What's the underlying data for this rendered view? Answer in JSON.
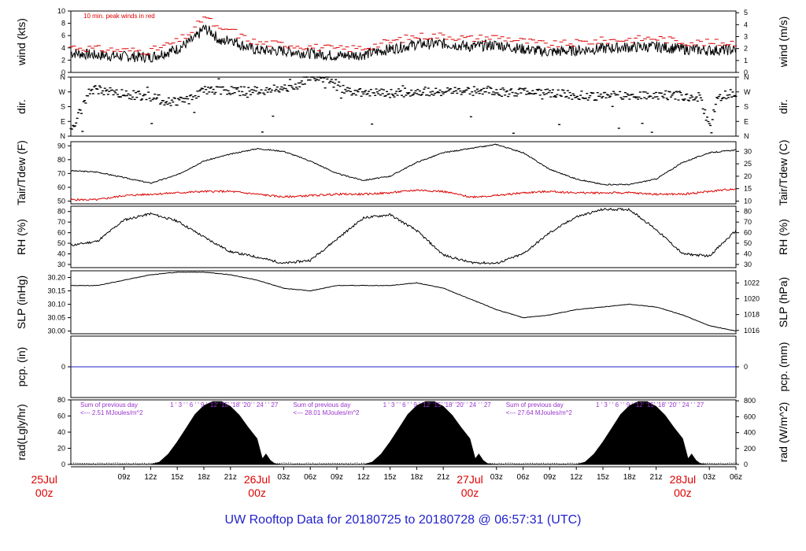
{
  "title": "UW Rooftop Data for 20180725  to  20180728 @ 06:57:31  (UTC)",
  "colors": {
    "title": "#2222cc",
    "peak": "#dd0000",
    "dew": "#dd0000",
    "precip": "#2222cc",
    "note": "#9933cc",
    "date": "#dd0000",
    "axis": "#000000"
  },
  "x_axis": {
    "time_range_hours": [
      3,
      78
    ],
    "hour_ticks": [
      {
        "h": 9,
        "label": "09z"
      },
      {
        "h": 12,
        "label": "12z"
      },
      {
        "h": 15,
        "label": "15z"
      },
      {
        "h": 18,
        "label": "18z"
      },
      {
        "h": 21,
        "label": "21z"
      },
      {
        "h": 27,
        "label": "03z"
      },
      {
        "h": 30,
        "label": "06z"
      },
      {
        "h": 33,
        "label": "09z"
      },
      {
        "h": 36,
        "label": "12z"
      },
      {
        "h": 39,
        "label": "15z"
      },
      {
        "h": 42,
        "label": "18z"
      },
      {
        "h": 45,
        "label": "21z"
      },
      {
        "h": 51,
        "label": "03z"
      },
      {
        "h": 54,
        "label": "06z"
      },
      {
        "h": 57,
        "label": "09z"
      },
      {
        "h": 60,
        "label": "12z"
      },
      {
        "h": 63,
        "label": "15z"
      },
      {
        "h": 66,
        "label": "18z"
      },
      {
        "h": 69,
        "label": "21z"
      },
      {
        "h": 75,
        "label": "03z"
      },
      {
        "h": 78,
        "label": "06z"
      }
    ],
    "date_labels": [
      {
        "h": 0,
        "line1": "25Jul",
        "line2": "00z"
      },
      {
        "h": 24,
        "line1": "26Jul",
        "line2": "00z"
      },
      {
        "h": 48,
        "line1": "27Jul",
        "line2": "00z"
      },
      {
        "h": 72,
        "line1": "28Jul",
        "line2": "00z"
      }
    ]
  },
  "panels": {
    "wind": {
      "ylabel_left": "wind (kts)",
      "ylabel_right": "wind (m/s)",
      "left_ticks": [
        "0",
        "2",
        "4",
        "6",
        "8",
        "10"
      ],
      "right_ticks": [
        "0",
        "1",
        "2",
        "3",
        "4",
        "5"
      ],
      "note": "10 min. peak winds in red"
    },
    "dir": {
      "ylabel_left": "dir.",
      "ylabel_right": "dir.",
      "ticks": [
        "N",
        "E",
        "S",
        "W",
        "N"
      ]
    },
    "temp": {
      "ylabel_left": "Tair/Tdew (F)",
      "ylabel_right": "Tair/Tdew (C)",
      "left_ticks": [
        "50",
        "60",
        "70",
        "80",
        "90"
      ],
      "right_ticks": [
        "10",
        "15",
        "20",
        "25",
        "30"
      ]
    },
    "rh": {
      "ylabel_left": "RH (%)",
      "ylabel_right": "RH (%)",
      "ticks": [
        "30",
        "40",
        "50",
        "60",
        "70",
        "80"
      ]
    },
    "slp": {
      "ylabel_left": "SLP (inHg)",
      "ylabel_right": "SLP (hPa)",
      "left_ticks": [
        "30.00",
        "30.05",
        "30.10",
        "30.15",
        "30.20"
      ],
      "right_ticks": [
        "1016",
        "1018",
        "1020",
        "1022"
      ]
    },
    "pcp": {
      "ylabel_left": "pcp. (in)",
      "ylabel_right": "pcp. (mm)",
      "left_ticks": [
        "0"
      ],
      "right_ticks": [
        "0"
      ]
    },
    "rad": {
      "ylabel_left": "rad(Lgly/hr)",
      "ylabel_right": "rad (W/m^2)",
      "left_ticks": [
        "0",
        "20",
        "40",
        "60",
        "80"
      ],
      "right_ticks": [
        "0",
        "200",
        "400",
        "600",
        "800"
      ],
      "day_marks": "1 ' 3 ' ' 6 ' ' 9 ' '12' '15' '18' '20' ' 24 ' ' 27",
      "sums": [
        {
          "h": 0,
          "line1": "Sum of previous day",
          "line2": "<--- 2.51 MJoules/m^2"
        },
        {
          "h": 24,
          "line1": "Sum of previous day",
          "line2": "<--- 28.01 MJoules/m^2"
        },
        {
          "h": 48,
          "line1": "Sum of previous day",
          "line2": "<--- 27.64 MJoules/m^2"
        }
      ]
    }
  },
  "chart_data": [
    {
      "type": "line",
      "title": "",
      "xlabel": "",
      "ylabel": "wind (kts)",
      "ylim": [
        0,
        10
      ],
      "x": [
        3,
        6,
        9,
        12,
        15,
        17,
        18,
        19,
        20,
        21,
        22,
        24,
        27,
        30,
        33,
        36,
        39,
        42,
        45,
        48,
        51,
        54,
        57,
        60,
        63,
        66,
        69,
        72,
        75,
        78
      ],
      "series": [
        {
          "name": "",
          "values": [
            3.2,
            2.8,
            2.6,
            2.5,
            3.8,
            5.5,
            7.2,
            6.4,
            4.8,
            5.6,
            4.6,
            3.6,
            3.5,
            3.1,
            2.7,
            2.9,
            3.8,
            4.6,
            4.7,
            4.2,
            4.5,
            3.8,
            3.3,
            3.6,
            3.9,
            4.1,
            4.2,
            3.8,
            3.6,
            3.7
          ]
        },
        {
          "name": "10 min. peak winds",
          "values": [
            4.2,
            3.8,
            3.6,
            3.5,
            5.0,
            7.0,
            9.2,
            8.0,
            6.5,
            7.2,
            6.0,
            4.8,
            4.6,
            4.2,
            3.8,
            4.0,
            5.0,
            5.9,
            6.0,
            5.5,
            5.8,
            5.1,
            4.5,
            4.8,
            5.2,
            5.4,
            5.6,
            5.0,
            4.8,
            4.9
          ]
        }
      ]
    },
    {
      "type": "scatter",
      "title": "",
      "ylabel": "dir.",
      "ylim": [
        0,
        360
      ],
      "x": [
        3,
        4,
        5,
        6,
        7,
        8,
        10,
        12,
        14,
        15,
        16,
        18,
        20,
        22,
        24,
        26,
        28,
        30,
        32,
        34,
        36,
        38,
        40,
        42,
        44,
        46,
        48,
        50,
        52,
        54,
        56,
        58,
        60,
        62,
        64,
        66,
        68,
        70,
        72,
        74,
        75,
        76,
        78
      ],
      "series": [
        {
          "name": "",
          "values": [
            20,
            140,
            270,
            285,
            270,
            265,
            250,
            240,
            210,
            215,
            225,
            275,
            280,
            275,
            275,
            285,
            290,
            360,
            350,
            275,
            270,
            260,
            265,
            270,
            275,
            270,
            275,
            280,
            265,
            270,
            275,
            260,
            250,
            245,
            250,
            245,
            255,
            250,
            245,
            240,
            50,
            240,
            270
          ]
        }
      ]
    },
    {
      "type": "line",
      "title": "",
      "ylabel": "Tair/Tdew (F)",
      "ylim": [
        48,
        93
      ],
      "x": [
        3,
        6,
        9,
        12,
        15,
        18,
        21,
        24,
        27,
        30,
        33,
        36,
        39,
        42,
        45,
        48,
        51,
        54,
        57,
        60,
        63,
        66,
        69,
        72,
        75,
        78
      ],
      "series": [
        {
          "name": "Tair",
          "values": [
            72,
            71,
            67,
            63,
            69,
            79,
            84,
            88,
            86,
            79,
            70,
            65,
            68,
            78,
            85,
            88,
            91,
            85,
            73,
            66,
            62,
            62,
            66,
            78,
            85,
            87
          ]
        },
        {
          "name": "Tdew",
          "values": [
            51,
            51,
            54,
            55,
            56,
            57,
            57,
            55,
            53,
            54,
            55,
            55,
            56,
            58,
            57,
            53,
            54,
            56,
            57,
            56,
            56,
            56,
            55,
            55,
            57,
            59
          ]
        }
      ]
    },
    {
      "type": "line",
      "title": "",
      "ylabel": "RH (%)",
      "ylim": [
        27,
        85
      ],
      "x": [
        3,
        6,
        9,
        12,
        15,
        18,
        21,
        24,
        27,
        30,
        33,
        36,
        39,
        42,
        45,
        48,
        51,
        54,
        57,
        60,
        63,
        66,
        69,
        72,
        75,
        78
      ],
      "series": [
        {
          "name": "",
          "values": [
            48,
            52,
            72,
            78,
            71,
            56,
            42,
            37,
            31,
            34,
            54,
            74,
            77,
            62,
            39,
            32,
            31,
            40,
            60,
            75,
            82,
            82,
            63,
            40,
            38,
            62
          ]
        }
      ]
    },
    {
      "type": "line",
      "title": "",
      "ylabel": "SLP (inHg)",
      "ylim": [
        29.99,
        30.225
      ],
      "x": [
        3,
        6,
        9,
        12,
        15,
        18,
        21,
        24,
        27,
        30,
        33,
        36,
        39,
        42,
        45,
        48,
        51,
        54,
        57,
        60,
        63,
        66,
        69,
        72,
        75,
        78
      ],
      "series": [
        {
          "name": "",
          "values": [
            30.17,
            30.17,
            30.19,
            30.21,
            30.22,
            30.22,
            30.21,
            30.19,
            30.16,
            30.15,
            30.17,
            30.17,
            30.17,
            30.18,
            30.16,
            30.12,
            30.08,
            30.05,
            30.06,
            30.08,
            30.09,
            30.1,
            30.09,
            30.06,
            30.02,
            30.0
          ]
        }
      ]
    },
    {
      "type": "line",
      "title": "",
      "ylabel": "pcp. (in)",
      "x": [
        3,
        78
      ],
      "series": [
        {
          "name": "",
          "values": [
            0,
            0
          ]
        }
      ]
    },
    {
      "type": "area",
      "title": "",
      "ylabel": "rad(Lgly/hr)",
      "ylim": [
        0,
        80
      ],
      "x": [
        12,
        13,
        14,
        15,
        16,
        17,
        18,
        19,
        20,
        21,
        22,
        23,
        24,
        24.6,
        25,
        25.5,
        26,
        27,
        36,
        37,
        38,
        39,
        40,
        41,
        42,
        43,
        44,
        45,
        46,
        47,
        48,
        48.6,
        49,
        49.5,
        50,
        51,
        60,
        61,
        62,
        63,
        64,
        65,
        66,
        67,
        68,
        69,
        70,
        71,
        72,
        72.6,
        73,
        73.5,
        74,
        75
      ],
      "series": [
        {
          "name": "",
          "values": [
            0,
            3,
            13,
            28,
            45,
            62,
            73,
            78,
            78,
            72,
            61,
            46,
            32,
            7,
            13,
            5,
            1,
            0,
            0,
            3,
            13,
            28,
            45,
            62,
            73,
            78,
            78,
            72,
            61,
            46,
            32,
            7,
            13,
            5,
            1,
            0,
            0,
            3,
            13,
            28,
            45,
            62,
            73,
            78,
            78,
            72,
            61,
            46,
            32,
            7,
            13,
            5,
            1,
            0
          ]
        }
      ]
    }
  ]
}
